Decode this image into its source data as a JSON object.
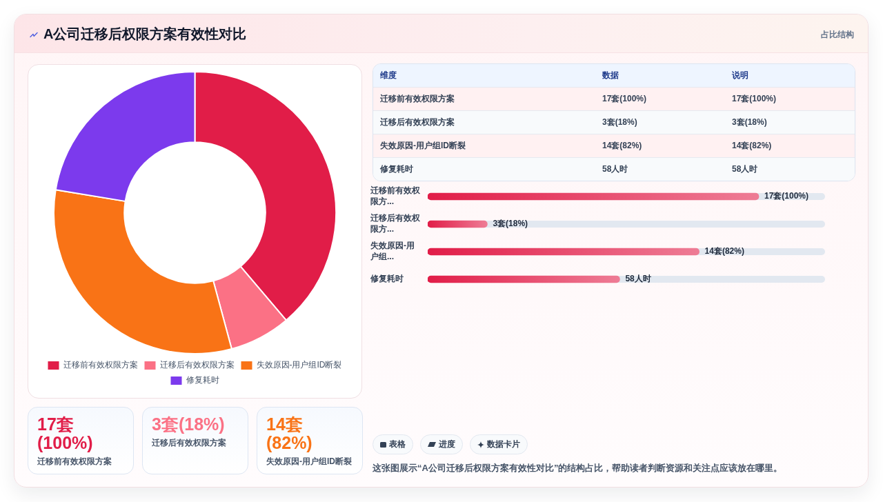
{
  "chart_data": [
    {
      "type": "other",
      "title": "A公司迁移后权限方案有效性对比",
      "subtitle": "占比结构"
    },
    {
      "type": "donut",
      "categories": [
        "迁移前有效权限方案",
        "迁移后有效权限方案",
        "失效原因-用户组ID断裂",
        "修复耗时"
      ],
      "values": [
        38.8,
        7.0,
        31.8,
        22.4
      ],
      "colors": [
        "#e11d48",
        "#fb7185",
        "#f97316",
        "#7c3aed"
      ],
      "legend": "bottom"
    },
    {
      "type": "other",
      "ylabel": "维度",
      "categories": [
        "数据",
        "说明"
      ],
      "y_categories": [
        "迁移前有效权限方案",
        "迁移后有效权限方案",
        "失效原因-用户组ID断裂",
        "修复耗时"
      ],
      "cell_labels": [
        [
          "17套(100%)",
          "17套(100%)"
        ],
        [
          "3套(18%)",
          "3套(18%)"
        ],
        [
          "14套(82%)",
          "14套(82%)"
        ],
        [
          "58人时",
          "58人时"
        ]
      ]
    },
    {
      "type": "bar",
      "orientation": "horizontal",
      "categories": [
        "迁移前有效权限方...",
        "迁移后有效权限方...",
        "失效原因-用户组...",
        "修复耗时"
      ],
      "values": [
        100,
        18,
        82,
        58
      ],
      "color": "#e11d48",
      "value_labels": [
        "17套(100%)",
        "3套(18%)",
        "14套(82%)",
        "58人时"
      ],
      "tick_labels": "y"
    },
    {
      "type": "other",
      "categories": [
        "迁移前有效权限方案",
        "迁移后有效权限方案",
        "失效原因-用户组ID断裂"
      ],
      "value_labels": [
        "17套(100%)",
        "3套(18%)",
        "14套(82%)"
      ]
    },
    {
      "type": "other",
      "categories": [
        "表格",
        "进度",
        "数据卡片"
      ],
      "annotations": [
        "这张图展示“A公司迁移后权限方案有效性对比”的结构占比，帮助读者判断资源和关注点应该放在哪里。"
      ]
    }
  ]
}
